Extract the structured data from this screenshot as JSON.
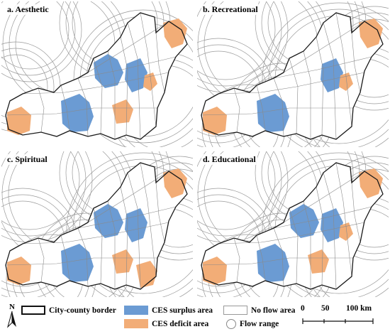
{
  "colors": {
    "surplus": "#6b9bd3",
    "deficit": "#f2ad77",
    "noflow": "#ffffff",
    "border": "#1a1a1a",
    "flow": "#9a9a9a"
  },
  "panels": [
    {
      "id": "a",
      "title": "a. Aesthetic",
      "surplus": [
        "zone-w1",
        "zone-c1",
        "zone-c2"
      ],
      "deficit": [
        "zone-far-w",
        "zone-ne",
        "zone-s1",
        "zone-s3"
      ],
      "flow_density": "medium"
    },
    {
      "id": "b",
      "title": "b. Recreational",
      "surplus": [
        "zone-w1",
        "zone-c2"
      ],
      "deficit": [
        "zone-far-w",
        "zone-ne",
        "zone-s3"
      ],
      "flow_density": "high"
    },
    {
      "id": "c",
      "title": "c. Spiritual",
      "surplus": [
        "zone-w1",
        "zone-c1",
        "zone-c2"
      ],
      "deficit": [
        "zone-far-w",
        "zone-ne",
        "zone-s1",
        "zone-s2"
      ],
      "flow_density": "high"
    },
    {
      "id": "d",
      "title": "d. Educational",
      "surplus": [
        "zone-w1",
        "zone-c1",
        "zone-c2"
      ],
      "deficit": [
        "zone-far-w",
        "zone-ne",
        "zone-s1",
        "zone-s3"
      ],
      "flow_density": "high"
    }
  ],
  "legend": {
    "north": "N",
    "border_label": "City-county border",
    "surplus_label": "CES surplus area",
    "deficit_label": "CES deficit area",
    "noflow_label": "No flow area",
    "flow_label": "Flow range",
    "scale": {
      "ticks": [
        "0",
        "50",
        "100 km"
      ]
    }
  }
}
